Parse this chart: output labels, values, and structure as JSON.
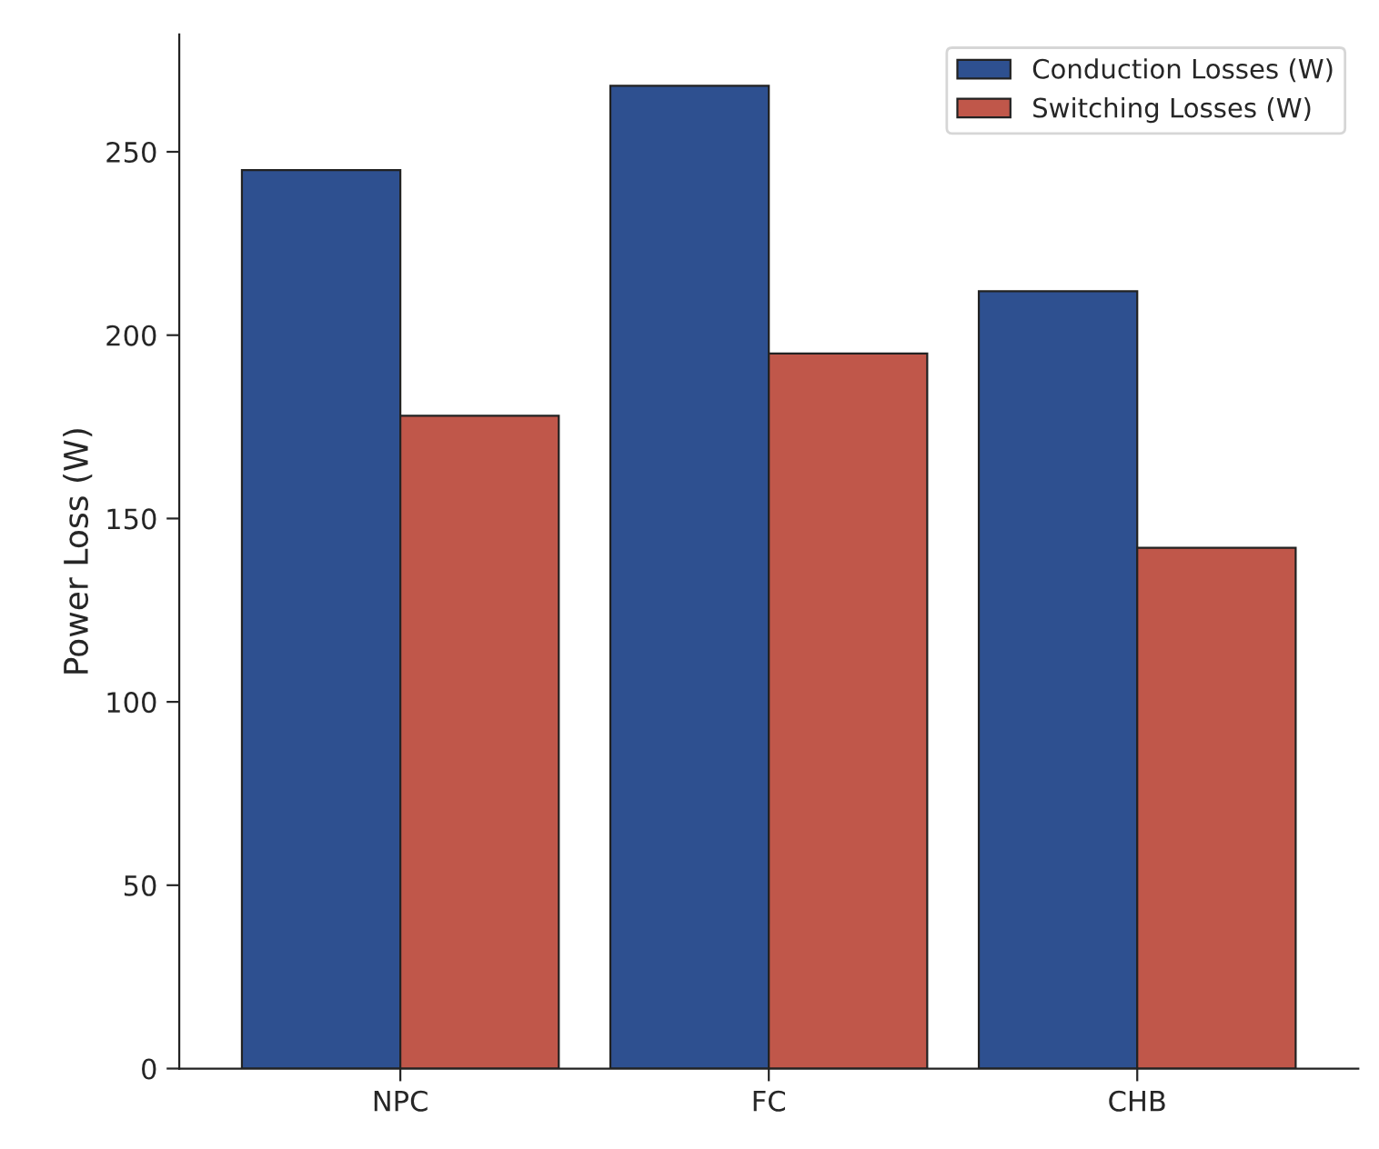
{
  "chart_data": {
    "type": "bar",
    "ylabel": "Power Loss (W)",
    "categories": [
      "NPC",
      "FC",
      "CHB"
    ],
    "series": [
      {
        "name": "Conduction Losses (W)",
        "color": "#2e5090",
        "values": [
          245,
          268,
          212
        ]
      },
      {
        "name": "Switching Losses (W)",
        "color": "#c0574a",
        "values": [
          178,
          195,
          142
        ]
      }
    ],
    "ylim": [
      0,
      282
    ],
    "yticks": [
      0,
      50,
      100,
      150,
      200,
      250
    ],
    "legend": "top right",
    "grid": false
  }
}
